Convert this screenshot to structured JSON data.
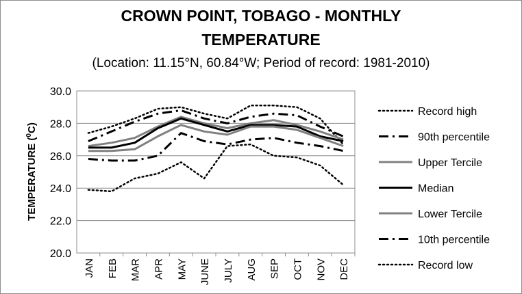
{
  "chart_data": {
    "type": "line",
    "title_line1": "CROWN POINT, TOBAGO - MONTHLY",
    "title_line2": "TEMPERATURE",
    "subtitle": "(Location: 11.15°N, 60.84°W; Period of record: 1981-2010)",
    "ylabel": "TEMPERATURE (",
    "ylabel_unit": "0",
    "ylabel_tail": "C)",
    "xlabel": "",
    "ylim": [
      20.0,
      30.0
    ],
    "yticks": [
      "20.0",
      "22.0",
      "24.0",
      "26.0",
      "28.0",
      "30.0"
    ],
    "categories": [
      "JAN",
      "FEB",
      "MAR",
      "APR",
      "MAY",
      "JUNE",
      "JULY",
      "AUG",
      "SEP",
      "OCT",
      "NOV",
      "DEC"
    ],
    "grid": true,
    "legend_position": "right",
    "series": [
      {
        "name": "Record high",
        "style": "dotted",
        "color": "#000000",
        "values": [
          27.4,
          27.8,
          28.3,
          28.9,
          29.0,
          28.6,
          28.3,
          29.1,
          29.1,
          29.0,
          28.3,
          26.7
        ]
      },
      {
        "name": "90th percentile",
        "style": "dashdot",
        "color": "#000000",
        "values": [
          26.9,
          27.5,
          28.1,
          28.6,
          28.8,
          28.3,
          28.0,
          28.4,
          28.6,
          28.5,
          27.8,
          27.2
        ]
      },
      {
        "name": "Upper Tercile",
        "style": "solid",
        "color": "#808080",
        "values": [
          26.6,
          26.8,
          27.1,
          27.8,
          28.4,
          28.0,
          27.7,
          28.0,
          28.2,
          27.9,
          27.5,
          27.0
        ]
      },
      {
        "name": "Median",
        "style": "solid",
        "color": "#000000",
        "values": [
          26.5,
          26.5,
          26.8,
          27.7,
          28.3,
          27.9,
          27.5,
          27.9,
          27.9,
          27.8,
          27.2,
          26.9
        ]
      },
      {
        "name": "Lower Tercile",
        "style": "solid",
        "color": "#808080",
        "values": [
          26.3,
          26.3,
          26.4,
          27.2,
          27.9,
          27.5,
          27.3,
          27.8,
          27.8,
          27.6,
          27.1,
          26.6
        ]
      },
      {
        "name": "10th percentile",
        "style": "dashdot",
        "color": "#000000",
        "values": [
          25.8,
          25.7,
          25.7,
          26.0,
          27.4,
          26.9,
          26.7,
          27.0,
          27.1,
          26.8,
          26.6,
          26.3
        ]
      },
      {
        "name": "Record low",
        "style": "dotted",
        "color": "#000000",
        "values": [
          23.9,
          23.8,
          24.6,
          24.9,
          25.6,
          24.6,
          26.6,
          26.7,
          26.0,
          25.9,
          25.4,
          24.2
        ]
      }
    ]
  }
}
